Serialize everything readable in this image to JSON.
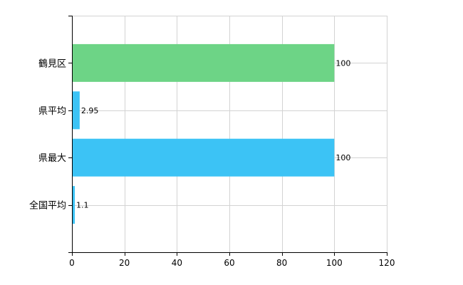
{
  "chart_data": {
    "type": "bar",
    "orientation": "horizontal",
    "categories": [
      "鶴見区",
      "県平均",
      "県最大",
      "全国平均"
    ],
    "values": [
      100,
      2.95,
      100,
      1.1
    ],
    "data_labels": [
      "100",
      "2.95",
      "100",
      "1.1"
    ],
    "colors": [
      "#6dd486",
      "#3cc3f5",
      "#3cc3f5",
      "#3cc3f5"
    ],
    "xlim": [
      0,
      120
    ],
    "x_ticks": [
      0,
      20,
      40,
      60,
      80,
      100,
      120
    ],
    "x_tick_labels": [
      "0",
      "20",
      "40",
      "60",
      "80",
      "100",
      "120"
    ],
    "grid": true,
    "title": "",
    "xlabel": "",
    "ylabel": ""
  }
}
